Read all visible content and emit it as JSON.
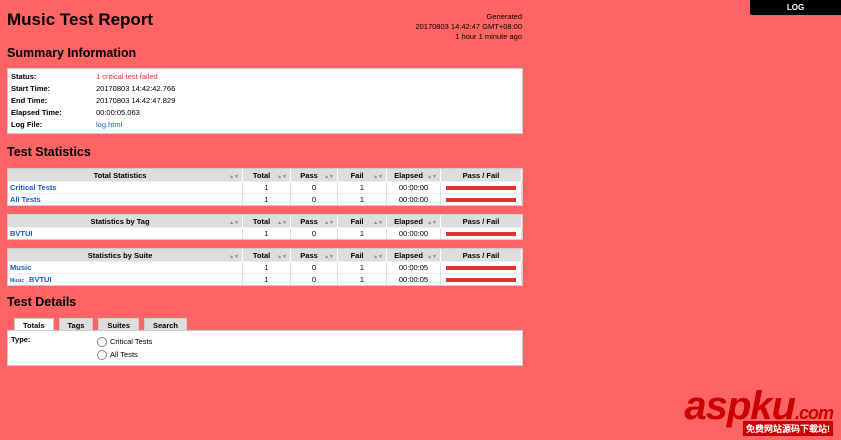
{
  "title": "Music Test Report",
  "generated": {
    "label": "Generated",
    "datetime": "20170803 14:42:47 GMT+08:00",
    "ago": "1 hour 1 minute ago"
  },
  "log_button": "LOG",
  "summary": {
    "heading": "Summary Information",
    "rows": [
      {
        "k": "Status:",
        "v": "1 critical test failed"
      },
      {
        "k": "Start Time:",
        "v": "20170803 14:42:42.766"
      },
      {
        "k": "End Time:",
        "v": "20170803 14:42:47.829"
      },
      {
        "k": "Elapsed Time:",
        "v": "00:00:05.063"
      },
      {
        "k": "Log File:",
        "v": "log.html"
      }
    ]
  },
  "statistics": {
    "heading": "Test Statistics",
    "columns": [
      "Total",
      "Pass",
      "Fail",
      "Elapsed",
      "Pass / Fail"
    ],
    "tables": [
      {
        "title": "Total Statistics",
        "rows": [
          {
            "name": "Critical Tests",
            "total": "1",
            "pass": "0",
            "fail": "1",
            "elapsed": "00:00:00",
            "fail_ratio": 1
          },
          {
            "name": "All Tests",
            "total": "1",
            "pass": "0",
            "fail": "1",
            "elapsed": "00:00:00",
            "fail_ratio": 1
          }
        ]
      },
      {
        "title": "Statistics by Tag",
        "rows": [
          {
            "name": "BVTUI",
            "total": "1",
            "pass": "0",
            "fail": "1",
            "elapsed": "00:00:00",
            "fail_ratio": 1
          }
        ]
      },
      {
        "title": "Statistics by Suite",
        "rows": [
          {
            "name": "Music",
            "total": "1",
            "pass": "0",
            "fail": "1",
            "elapsed": "00:00:05",
            "fail_ratio": 1
          },
          {
            "prefix": "Music .",
            "name": "BVTUI",
            "total": "1",
            "pass": "0",
            "fail": "1",
            "elapsed": "00:00:05",
            "fail_ratio": 1
          }
        ]
      }
    ]
  },
  "details": {
    "heading": "Test Details",
    "tabs": [
      "Totals",
      "Tags",
      "Suites",
      "Search"
    ],
    "active_tab": "Totals",
    "type_label": "Type:",
    "options": [
      "Critical Tests",
      "All Tests"
    ]
  },
  "watermark": {
    "logo": "aspku.com",
    "tagline": "免费网站源码下载站!"
  },
  "colors": {
    "background": "#fe6464",
    "fail": "#e53030",
    "link": "#1a5ac8"
  }
}
